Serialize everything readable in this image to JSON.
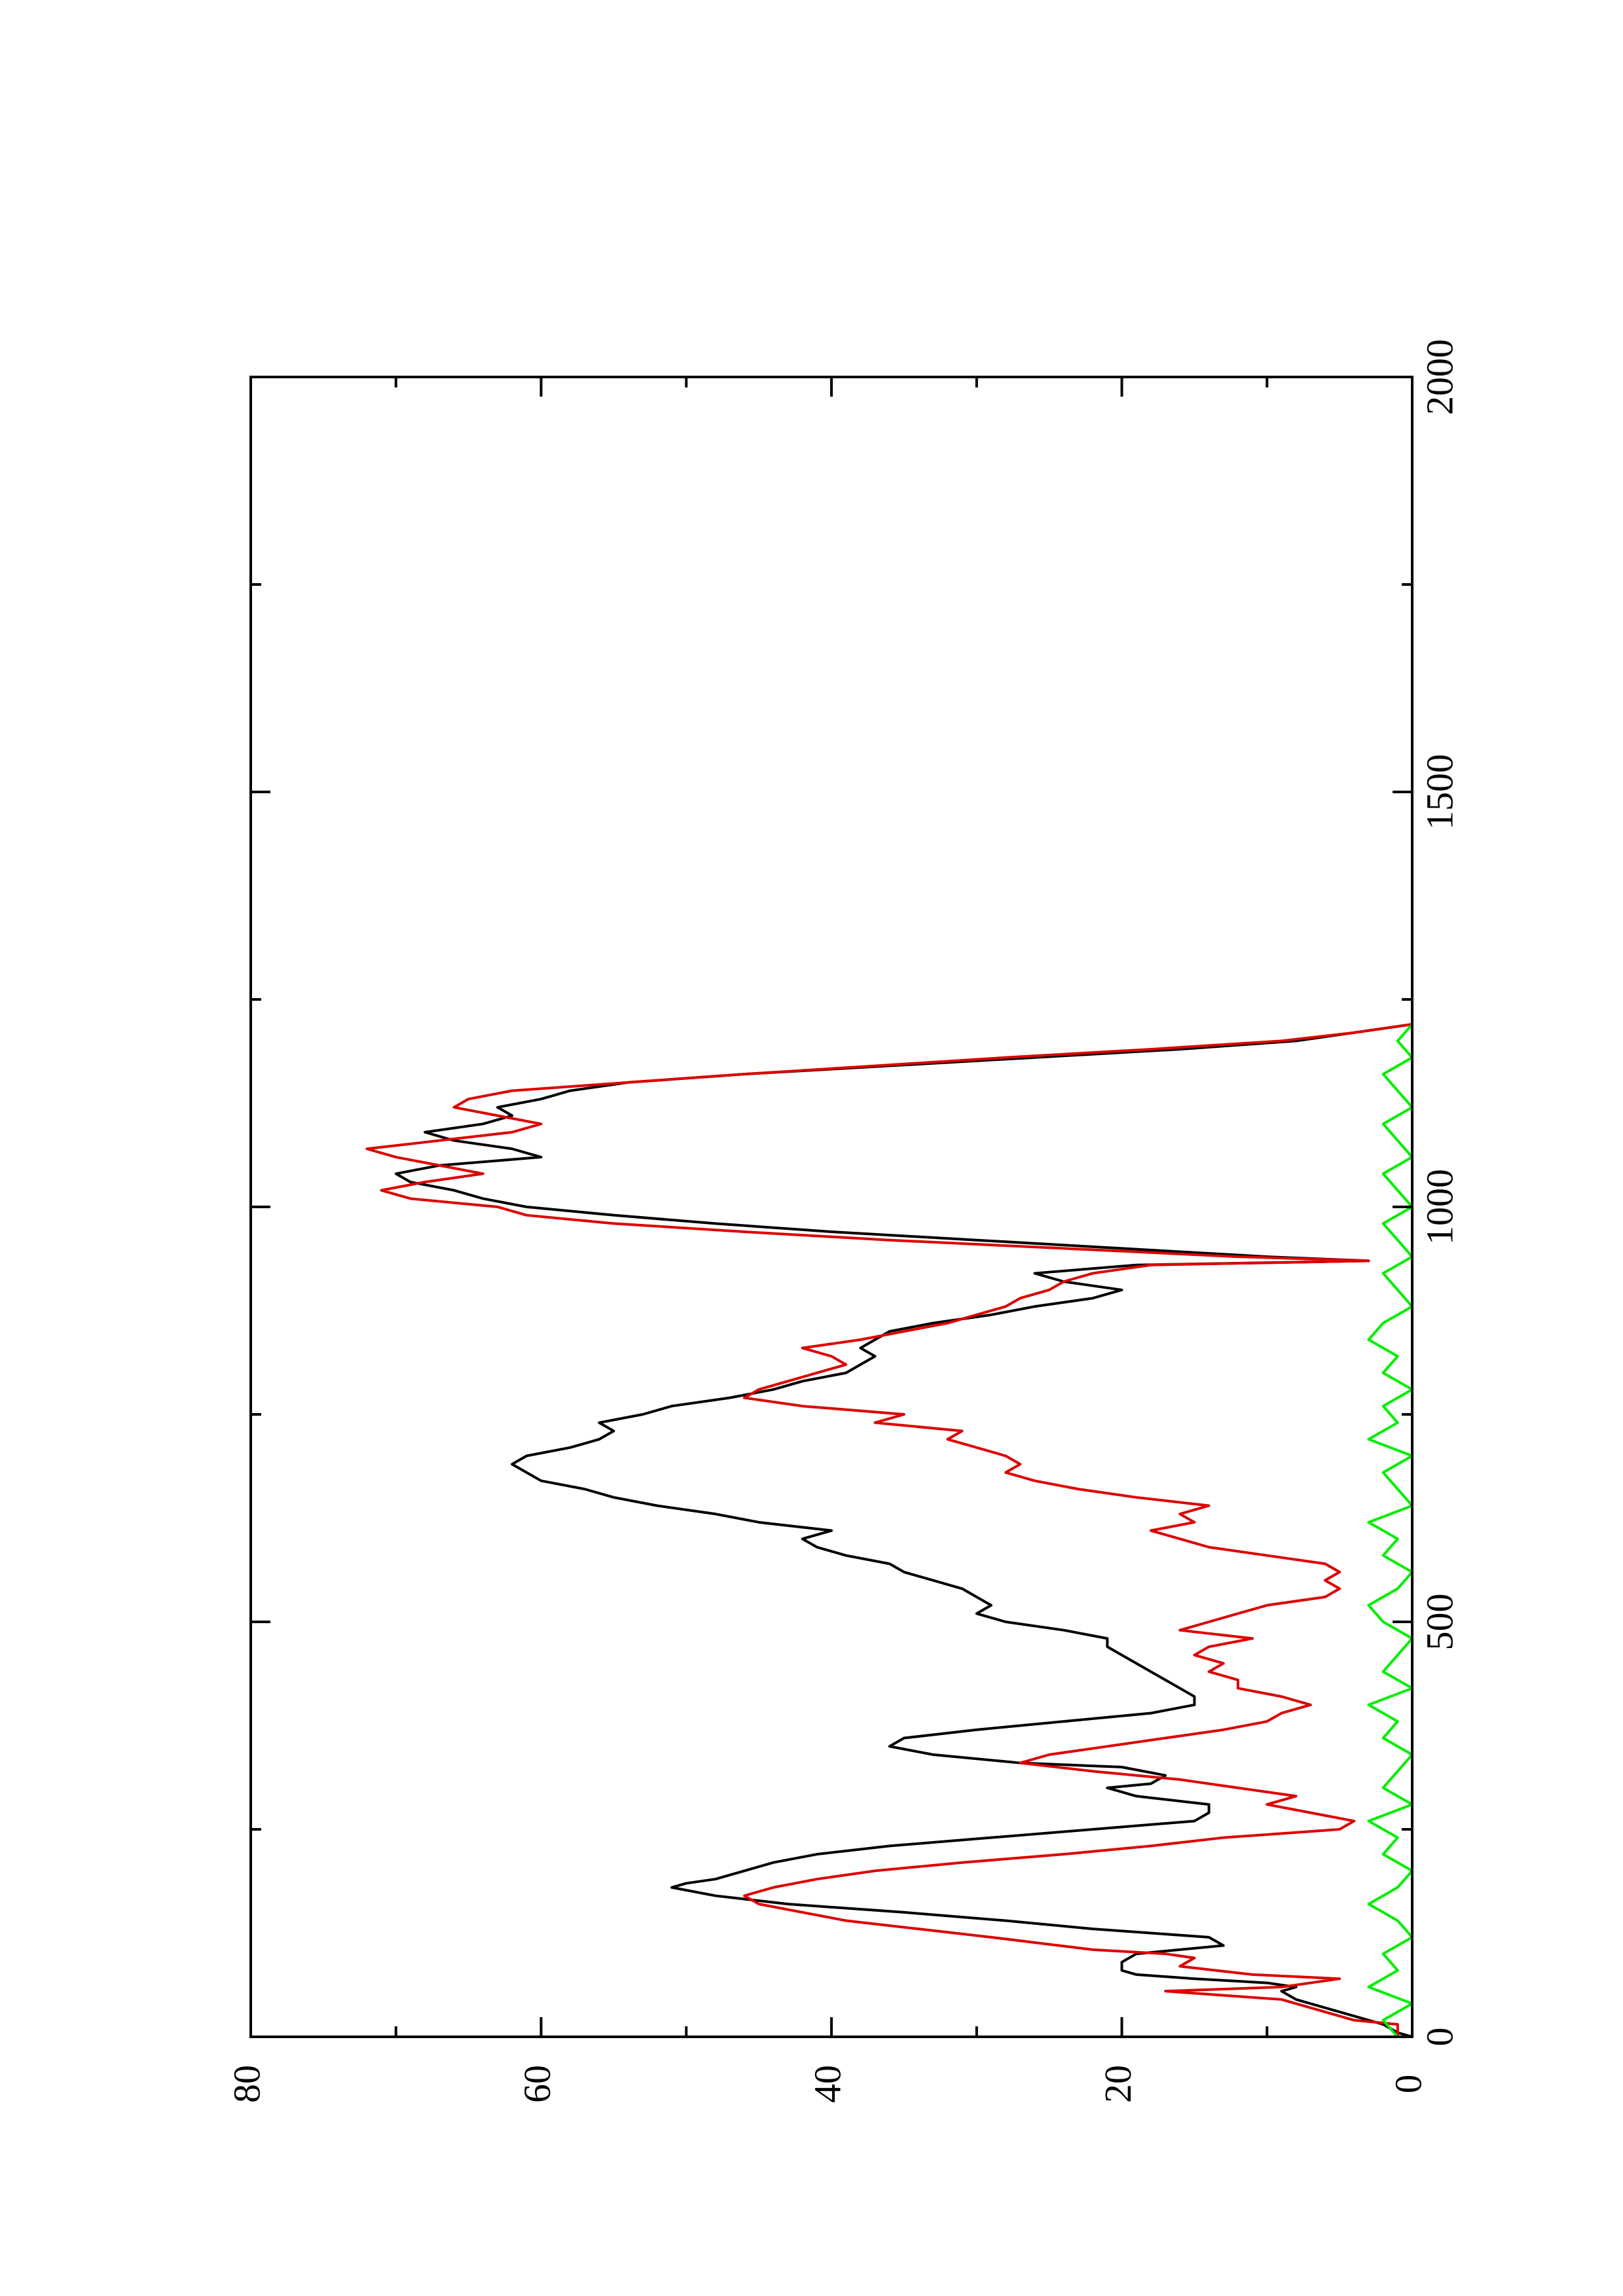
{
  "chart_data": {
    "type": "line",
    "orientation": "rotated-90-ccw",
    "title": "",
    "xlabel": "",
    "ylabel": "",
    "xlim": [
      0,
      2000
    ],
    "ylim": [
      0,
      80
    ],
    "xticks": [
      0,
      500,
      1000,
      1500,
      2000
    ],
    "yticks": [
      0,
      20,
      40,
      60,
      80
    ],
    "grid": false,
    "legend": "none",
    "colors": {
      "black_series": "#000000",
      "red_series": "#dd0000",
      "green_series": "#00ee00",
      "axes": "#000000"
    },
    "series": [
      {
        "color": "#000000",
        "points": [
          [
            0,
            0
          ],
          [
            5,
            1
          ],
          [
            15,
            2
          ],
          [
            25,
            4
          ],
          [
            35,
            6
          ],
          [
            45,
            8
          ],
          [
            55,
            9
          ],
          [
            60,
            8
          ],
          [
            65,
            10
          ],
          [
            70,
            15
          ],
          [
            75,
            19
          ],
          [
            80,
            20
          ],
          [
            90,
            20
          ],
          [
            100,
            19
          ],
          [
            110,
            13
          ],
          [
            120,
            14
          ],
          [
            130,
            22
          ],
          [
            140,
            28
          ],
          [
            150,
            35
          ],
          [
            160,
            43
          ],
          [
            170,
            48
          ],
          [
            180,
            51
          ],
          [
            185,
            50
          ],
          [
            190,
            48
          ],
          [
            200,
            46
          ],
          [
            210,
            44
          ],
          [
            220,
            41
          ],
          [
            230,
            36
          ],
          [
            240,
            29
          ],
          [
            250,
            22
          ],
          [
            260,
            15
          ],
          [
            270,
            14
          ],
          [
            280,
            14
          ],
          [
            290,
            19
          ],
          [
            300,
            21
          ],
          [
            305,
            18
          ],
          [
            315,
            17
          ],
          [
            325,
            20
          ],
          [
            330,
            27
          ],
          [
            340,
            33
          ],
          [
            350,
            36
          ],
          [
            360,
            35
          ],
          [
            370,
            30
          ],
          [
            380,
            24
          ],
          [
            390,
            18
          ],
          [
            400,
            15
          ],
          [
            410,
            15
          ],
          [
            420,
            16
          ],
          [
            430,
            17
          ],
          [
            440,
            18
          ],
          [
            450,
            19
          ],
          [
            460,
            20
          ],
          [
            470,
            21
          ],
          [
            480,
            21
          ],
          [
            490,
            24
          ],
          [
            500,
            28
          ],
          [
            510,
            30
          ],
          [
            520,
            29
          ],
          [
            530,
            30
          ],
          [
            540,
            31
          ],
          [
            550,
            33
          ],
          [
            560,
            35
          ],
          [
            570,
            36
          ],
          [
            580,
            39
          ],
          [
            590,
            41
          ],
          [
            600,
            42
          ],
          [
            610,
            40
          ],
          [
            620,
            45
          ],
          [
            630,
            48
          ],
          [
            640,
            52
          ],
          [
            650,
            55
          ],
          [
            660,
            57
          ],
          [
            670,
            60
          ],
          [
            680,
            61
          ],
          [
            690,
            62
          ],
          [
            700,
            61
          ],
          [
            710,
            58
          ],
          [
            720,
            56
          ],
          [
            730,
            55
          ],
          [
            740,
            56
          ],
          [
            750,
            53
          ],
          [
            760,
            51
          ],
          [
            770,
            47
          ],
          [
            780,
            44
          ],
          [
            790,
            42
          ],
          [
            800,
            39
          ],
          [
            810,
            38
          ],
          [
            820,
            37
          ],
          [
            830,
            38
          ],
          [
            840,
            37
          ],
          [
            850,
            36
          ],
          [
            860,
            33
          ],
          [
            870,
            29
          ],
          [
            880,
            26
          ],
          [
            890,
            22
          ],
          [
            900,
            20
          ],
          [
            910,
            24
          ],
          [
            920,
            26
          ],
          [
            930,
            19
          ],
          [
            935,
            3
          ],
          [
            940,
            10
          ],
          [
            950,
            20
          ],
          [
            960,
            30
          ],
          [
            970,
            40
          ],
          [
            980,
            48
          ],
          [
            990,
            55
          ],
          [
            1000,
            61
          ],
          [
            1010,
            64
          ],
          [
            1020,
            66
          ],
          [
            1030,
            69
          ],
          [
            1040,
            70
          ],
          [
            1050,
            67
          ],
          [
            1060,
            60
          ],
          [
            1070,
            62
          ],
          [
            1080,
            66
          ],
          [
            1090,
            68
          ],
          [
            1100,
            64
          ],
          [
            1110,
            62
          ],
          [
            1120,
            63
          ],
          [
            1130,
            60
          ],
          [
            1140,
            58
          ],
          [
            1150,
            54
          ],
          [
            1160,
            46
          ],
          [
            1170,
            36
          ],
          [
            1180,
            26
          ],
          [
            1190,
            16
          ],
          [
            1200,
            8
          ],
          [
            1210,
            4
          ],
          [
            1220,
            0
          ]
        ]
      },
      {
        "color": "#dd0000",
        "points": [
          [
            0,
            1
          ],
          [
            15,
            1
          ],
          [
            20,
            4
          ],
          [
            30,
            6
          ],
          [
            45,
            9
          ],
          [
            50,
            13
          ],
          [
            55,
            17
          ],
          [
            60,
            9
          ],
          [
            70,
            5
          ],
          [
            75,
            11
          ],
          [
            85,
            16
          ],
          [
            95,
            15
          ],
          [
            100,
            17
          ],
          [
            105,
            22
          ],
          [
            120,
            29
          ],
          [
            130,
            34
          ],
          [
            140,
            39
          ],
          [
            150,
            42
          ],
          [
            160,
            45
          ],
          [
            170,
            46
          ],
          [
            180,
            44
          ],
          [
            190,
            41
          ],
          [
            200,
            37
          ],
          [
            210,
            31
          ],
          [
            220,
            24
          ],
          [
            230,
            18
          ],
          [
            240,
            13
          ],
          [
            250,
            5
          ],
          [
            260,
            4
          ],
          [
            270,
            7
          ],
          [
            280,
            10
          ],
          [
            290,
            8
          ],
          [
            300,
            12
          ],
          [
            310,
            16
          ],
          [
            320,
            22
          ],
          [
            330,
            27
          ],
          [
            340,
            25
          ],
          [
            350,
            21
          ],
          [
            360,
            17
          ],
          [
            370,
            13
          ],
          [
            380,
            10
          ],
          [
            390,
            9
          ],
          [
            400,
            7
          ],
          [
            410,
            9
          ],
          [
            420,
            12
          ],
          [
            430,
            12
          ],
          [
            440,
            14
          ],
          [
            450,
            13
          ],
          [
            460,
            15
          ],
          [
            470,
            14
          ],
          [
            480,
            11
          ],
          [
            490,
            16
          ],
          [
            500,
            14
          ],
          [
            510,
            12
          ],
          [
            520,
            10
          ],
          [
            530,
            6
          ],
          [
            540,
            5
          ],
          [
            550,
            6
          ],
          [
            560,
            5
          ],
          [
            570,
            6
          ],
          [
            580,
            10
          ],
          [
            590,
            14
          ],
          [
            600,
            16
          ],
          [
            610,
            18
          ],
          [
            620,
            15
          ],
          [
            630,
            16
          ],
          [
            640,
            14
          ],
          [
            650,
            19
          ],
          [
            660,
            23
          ],
          [
            670,
            26
          ],
          [
            680,
            28
          ],
          [
            690,
            27
          ],
          [
            700,
            28
          ],
          [
            710,
            30
          ],
          [
            720,
            32
          ],
          [
            730,
            31
          ],
          [
            740,
            37
          ],
          [
            750,
            35
          ],
          [
            760,
            42
          ],
          [
            770,
            46
          ],
          [
            780,
            45
          ],
          [
            790,
            43
          ],
          [
            800,
            41
          ],
          [
            810,
            39
          ],
          [
            820,
            40
          ],
          [
            830,
            42
          ],
          [
            840,
            38
          ],
          [
            850,
            35
          ],
          [
            860,
            32
          ],
          [
            870,
            30
          ],
          [
            880,
            28
          ],
          [
            890,
            27
          ],
          [
            900,
            25
          ],
          [
            910,
            24
          ],
          [
            920,
            22
          ],
          [
            930,
            18
          ],
          [
            935,
            3
          ],
          [
            940,
            12
          ],
          [
            950,
            24
          ],
          [
            960,
            36
          ],
          [
            970,
            46
          ],
          [
            980,
            55
          ],
          [
            990,
            61
          ],
          [
            1000,
            63
          ],
          [
            1010,
            69
          ],
          [
            1020,
            71
          ],
          [
            1030,
            68
          ],
          [
            1040,
            64
          ],
          [
            1050,
            67
          ],
          [
            1060,
            70
          ],
          [
            1070,
            72
          ],
          [
            1080,
            67
          ],
          [
            1090,
            62
          ],
          [
            1100,
            60
          ],
          [
            1110,
            63
          ],
          [
            1120,
            66
          ],
          [
            1130,
            65
          ],
          [
            1140,
            62
          ],
          [
            1150,
            54
          ],
          [
            1160,
            46
          ],
          [
            1170,
            37
          ],
          [
            1180,
            28
          ],
          [
            1190,
            18
          ],
          [
            1200,
            9
          ],
          [
            1210,
            4
          ],
          [
            1220,
            0
          ]
        ]
      },
      {
        "color": "#00ee00",
        "points": [
          [
            0,
            1
          ],
          [
            20,
            2
          ],
          [
            40,
            0
          ],
          [
            60,
            3
          ],
          [
            80,
            1
          ],
          [
            100,
            2
          ],
          [
            120,
            0
          ],
          [
            140,
            1
          ],
          [
            160,
            3
          ],
          [
            180,
            1
          ],
          [
            200,
            0
          ],
          [
            220,
            2
          ],
          [
            240,
            1
          ],
          [
            260,
            3
          ],
          [
            280,
            0
          ],
          [
            300,
            2
          ],
          [
            320,
            1
          ],
          [
            340,
            0
          ],
          [
            360,
            2
          ],
          [
            380,
            1
          ],
          [
            400,
            3
          ],
          [
            420,
            0
          ],
          [
            440,
            2
          ],
          [
            460,
            1
          ],
          [
            480,
            0
          ],
          [
            500,
            2
          ],
          [
            520,
            3
          ],
          [
            540,
            1
          ],
          [
            560,
            0
          ],
          [
            580,
            2
          ],
          [
            600,
            1
          ],
          [
            620,
            3
          ],
          [
            640,
            0
          ],
          [
            660,
            1
          ],
          [
            680,
            2
          ],
          [
            700,
            0
          ],
          [
            720,
            3
          ],
          [
            740,
            1
          ],
          [
            760,
            2
          ],
          [
            780,
            0
          ],
          [
            800,
            2
          ],
          [
            820,
            1
          ],
          [
            840,
            3
          ],
          [
            860,
            2
          ],
          [
            880,
            0
          ],
          [
            900,
            1
          ],
          [
            920,
            2
          ],
          [
            940,
            0
          ],
          [
            960,
            1
          ],
          [
            980,
            2
          ],
          [
            1000,
            0
          ],
          [
            1020,
            1
          ],
          [
            1040,
            2
          ],
          [
            1060,
            0
          ],
          [
            1080,
            1
          ],
          [
            1100,
            2
          ],
          [
            1120,
            0
          ],
          [
            1140,
            1
          ],
          [
            1160,
            2
          ],
          [
            1180,
            0
          ],
          [
            1200,
            1
          ],
          [
            1220,
            0
          ]
        ]
      }
    ]
  }
}
